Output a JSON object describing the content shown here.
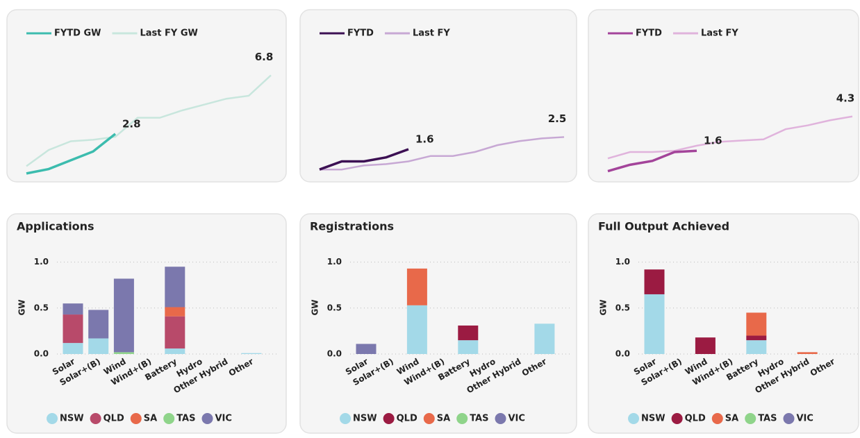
{
  "chart_data": [
    {
      "type": "line",
      "ylim": [
        0,
        7.2
      ],
      "series": [
        {
          "name": "FYTD GW",
          "color": "#3cbcae",
          "values": [
            0.1,
            0.4,
            1.0,
            1.6,
            2.8
          ]
        },
        {
          "name": "Last FY GW",
          "color": "#c8e6dd",
          "values": [
            0.6,
            1.7,
            2.3,
            2.4,
            2.6,
            3.9,
            3.9,
            4.4,
            4.8,
            5.2,
            5.4,
            6.8
          ]
        }
      ]
    },
    {
      "type": "line",
      "ylim": [
        -0.3,
        7.5
      ],
      "series": [
        {
          "name": "FYTD",
          "color": "#3c1053",
          "values": [
            0.1,
            0.7,
            0.7,
            1.0,
            1.6
          ]
        },
        {
          "name": "Last FY",
          "color": "#c7a8d4",
          "values": [
            0.1,
            0.1,
            0.4,
            0.5,
            0.7,
            1.1,
            1.1,
            1.4,
            1.9,
            2.2,
            2.4,
            2.5
          ]
        }
      ]
    },
    {
      "type": "line",
      "ylim": [
        -0.3,
        8
      ],
      "series": [
        {
          "name": "FYTD",
          "color": "#a3449a",
          "values": [
            0.0,
            0.5,
            0.8,
            1.5,
            1.6
          ]
        },
        {
          "name": "Last FY",
          "color": "#e0b3dc",
          "values": [
            1.0,
            1.5,
            1.5,
            1.6,
            2.0,
            2.3,
            2.4,
            2.5,
            3.3,
            3.6,
            4.0,
            4.3
          ]
        }
      ]
    },
    {
      "type": "bar",
      "title": "Applications",
      "y_label": "GW",
      "categories": [
        "Solar",
        "Solar+(B)",
        "Wind",
        "Wind+(B)",
        "Battery",
        "Hydro",
        "Other Hybrid",
        "Other"
      ],
      "ylim": [
        0,
        1.05
      ],
      "yticks": [
        {
          "value": 0,
          "label": "0.0"
        },
        0.5,
        {
          "value": 1,
          "label": "1.0"
        }
      ],
      "grid": true,
      "series": [
        {
          "name": "NSW",
          "color": "#a3d9e8",
          "values": [
            0.12,
            0.17,
            0,
            0,
            0.06,
            0,
            0,
            0.01
          ]
        },
        {
          "name": "QLD",
          "color": "#b84a6a",
          "values": [
            0.31,
            0,
            0,
            0,
            0.35,
            0,
            0,
            0
          ]
        },
        {
          "name": "SA",
          "color": "#e8694a",
          "values": [
            0,
            0,
            0,
            0,
            0.1,
            0,
            0,
            0
          ]
        },
        {
          "name": "TAS",
          "color": "#8fd48a",
          "values": [
            0,
            0,
            0.02,
            0,
            0,
            0,
            0,
            0
          ]
        },
        {
          "name": "VIC",
          "color": "#7b78ad",
          "values": [
            0.12,
            0.31,
            0.8,
            0,
            0.44,
            0,
            0,
            0
          ]
        }
      ]
    },
    {
      "type": "bar",
      "title": "Registrations",
      "y_label": "GW",
      "categories": [
        "Solar",
        "Solar+(B)",
        "Wind",
        "Wind+(B)",
        "Battery",
        "Hydro",
        "Other Hybrid",
        "Other"
      ],
      "ylim": [
        0,
        1.05
      ],
      "yticks": [
        {
          "value": 0,
          "label": "0.0"
        },
        0.5,
        {
          "value": 1,
          "label": "1.0"
        }
      ],
      "grid": true,
      "series": [
        {
          "name": "NSW",
          "color": "#a3d9e8",
          "values": [
            0,
            0,
            0.53,
            0,
            0.15,
            0,
            0,
            0.33
          ]
        },
        {
          "name": "QLD",
          "color": "#9b1b42",
          "values": [
            0,
            0,
            0,
            0,
            0.16,
            0,
            0,
            0
          ]
        },
        {
          "name": "SA",
          "color": "#e8694a",
          "values": [
            0,
            0,
            0.4,
            0,
            0,
            0,
            0,
            0
          ]
        },
        {
          "name": "TAS",
          "color": "#8fd48a",
          "values": [
            0,
            0,
            0,
            0,
            0,
            0,
            0,
            0
          ]
        },
        {
          "name": "VIC",
          "color": "#7b78ad",
          "values": [
            0.11,
            0,
            0,
            0,
            0,
            0,
            0,
            0
          ]
        }
      ]
    },
    {
      "type": "bar",
      "title": "Full Output Achieved",
      "y_label": "GW",
      "categories": [
        "Solar",
        "Solar+(B)",
        "Wind",
        "Wind+(B)",
        "Battery",
        "Hydro",
        "Other Hybrid",
        "Other"
      ],
      "ylim": [
        0,
        1.05
      ],
      "yticks": [
        {
          "value": 0,
          "label": "0.0"
        },
        0.5,
        {
          "value": 1,
          "label": "1.0"
        }
      ],
      "grid": true,
      "series": [
        {
          "name": "NSW",
          "color": "#a3d9e8",
          "values": [
            0.65,
            0,
            0,
            0,
            0.15,
            0,
            0,
            0
          ]
        },
        {
          "name": "QLD",
          "color": "#9b1b42",
          "values": [
            0.27,
            0,
            0.18,
            0,
            0.05,
            0,
            0,
            0
          ]
        },
        {
          "name": "SA",
          "color": "#e8694a",
          "values": [
            0,
            0,
            0,
            0,
            0.25,
            0,
            0.02,
            0
          ]
        },
        {
          "name": "TAS",
          "color": "#8fd48a",
          "values": [
            0,
            0,
            0,
            0,
            0,
            0,
            0,
            0
          ]
        },
        {
          "name": "VIC",
          "color": "#7b78ad",
          "values": [
            0,
            0,
            0,
            0,
            0,
            0,
            0,
            0
          ]
        }
      ]
    }
  ]
}
